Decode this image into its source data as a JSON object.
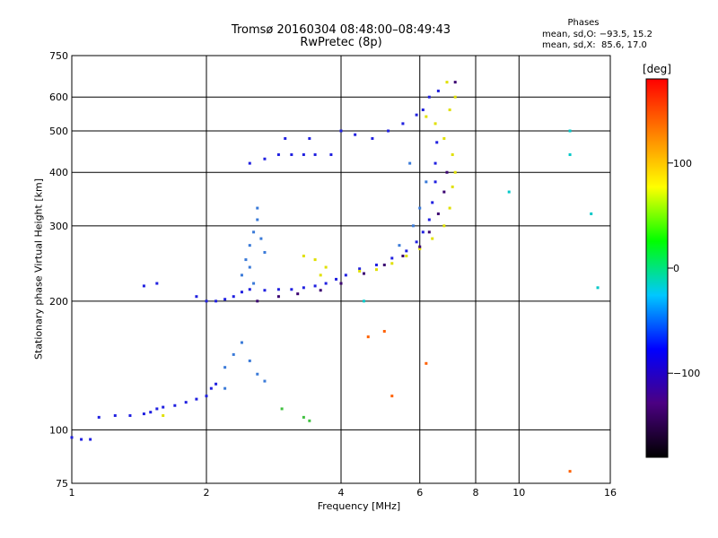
{
  "title": {
    "line1": "Tromsø 20160304 08:48:00–08:49:43",
    "line2": "RwPretec (8p)"
  },
  "phase_stats": {
    "heading": "Phases",
    "line1": "mean, sd,O: −93.5, 15.2",
    "line2": "mean, sd,X:  85.6, 17.0"
  },
  "colorbar": {
    "unit": "[deg]",
    "ticks": [
      "100",
      "0",
      "−100"
    ],
    "tick_values": [
      100,
      0,
      -100
    ],
    "range": [
      -180,
      180
    ],
    "colors": [
      "#000000",
      "#4b0082",
      "#0000ff",
      "#00c8ff",
      "#00ff00",
      "#ffff00",
      "#ff8000",
      "#ff0000"
    ]
  },
  "chart_data": {
    "type": "scatter",
    "xlabel": "Frequency [MHz]",
    "ylabel": "Stationary phase Virtual Height [km]",
    "x_scale": "log",
    "y_scale": "log",
    "xlim": [
      1,
      16
    ],
    "ylim": [
      75,
      750
    ],
    "x_ticks": [
      1,
      2,
      4,
      6,
      8,
      10,
      16
    ],
    "x_tick_labels": [
      "1",
      "2",
      "4",
      "6",
      "8",
      "10",
      "16"
    ],
    "y_ticks": [
      75,
      100,
      200,
      300,
      400,
      500,
      600,
      750
    ],
    "y_tick_labels": [
      "75",
      "100",
      "200",
      "300",
      "400",
      "500",
      "600",
      "750"
    ],
    "grid": true,
    "series": [
      {
        "color": "#2020e0",
        "points": [
          [
            1.0,
            96
          ],
          [
            1.05,
            95
          ],
          [
            1.1,
            95
          ],
          [
            1.15,
            107
          ],
          [
            1.25,
            108
          ],
          [
            1.35,
            108
          ],
          [
            1.45,
            109
          ],
          [
            1.5,
            110
          ],
          [
            1.55,
            112
          ],
          [
            1.6,
            113
          ],
          [
            1.7,
            114
          ],
          [
            1.8,
            116
          ],
          [
            1.9,
            118
          ],
          [
            2.0,
            120
          ],
          [
            2.05,
            125
          ],
          [
            2.1,
            128
          ],
          [
            1.45,
            217
          ],
          [
            1.55,
            220
          ],
          [
            1.9,
            205
          ],
          [
            2.0,
            200
          ],
          [
            2.1,
            200
          ],
          [
            2.2,
            202
          ],
          [
            2.3,
            205
          ],
          [
            2.4,
            210
          ],
          [
            2.5,
            213
          ],
          [
            2.7,
            212
          ],
          [
            2.9,
            213
          ],
          [
            3.1,
            213
          ],
          [
            3.3,
            215
          ],
          [
            3.5,
            217
          ],
          [
            3.7,
            220
          ],
          [
            3.9,
            225
          ],
          [
            4.1,
            230
          ],
          [
            4.4,
            238
          ],
          [
            4.8,
            243
          ],
          [
            5.2,
            252
          ],
          [
            5.6,
            262
          ],
          [
            5.9,
            275
          ],
          [
            6.1,
            290
          ],
          [
            6.3,
            310
          ],
          [
            6.4,
            340
          ],
          [
            6.5,
            380
          ],
          [
            6.5,
            420
          ],
          [
            6.55,
            470
          ],
          [
            2.5,
            420
          ],
          [
            2.7,
            430
          ],
          [
            2.9,
            440
          ],
          [
            3.1,
            440
          ],
          [
            3.3,
            440
          ],
          [
            3.5,
            440
          ],
          [
            3.8,
            440
          ],
          [
            4.0,
            500
          ],
          [
            4.3,
            490
          ],
          [
            4.7,
            480
          ],
          [
            5.1,
            500
          ],
          [
            5.5,
            520
          ],
          [
            5.9,
            545
          ],
          [
            6.1,
            560
          ],
          [
            6.3,
            600
          ],
          [
            6.6,
            620
          ],
          [
            3.0,
            480
          ],
          [
            3.4,
            480
          ]
        ]
      },
      {
        "color": "#3a7ad8",
        "points": [
          [
            2.4,
            230
          ],
          [
            2.45,
            250
          ],
          [
            2.5,
            270
          ],
          [
            2.55,
            290
          ],
          [
            2.6,
            310
          ],
          [
            2.65,
            280
          ],
          [
            2.7,
            260
          ],
          [
            2.5,
            240
          ],
          [
            2.55,
            220
          ],
          [
            2.6,
            330
          ],
          [
            2.2,
            140
          ],
          [
            2.3,
            150
          ],
          [
            2.4,
            160
          ],
          [
            2.5,
            145
          ],
          [
            2.6,
            135
          ],
          [
            2.2,
            125
          ],
          [
            2.7,
            130
          ],
          [
            5.4,
            270
          ],
          [
            5.8,
            300
          ],
          [
            6.0,
            330
          ],
          [
            6.2,
            380
          ],
          [
            5.7,
            420
          ]
        ]
      },
      {
        "color": "#e0e000",
        "points": [
          [
            3.3,
            255
          ],
          [
            3.5,
            250
          ],
          [
            3.7,
            240
          ],
          [
            4.4,
            235
          ],
          [
            4.8,
            237
          ],
          [
            5.2,
            245
          ],
          [
            5.6,
            255
          ],
          [
            6.0,
            265
          ],
          [
            6.4,
            280
          ],
          [
            6.8,
            300
          ],
          [
            7.0,
            330
          ],
          [
            7.1,
            370
          ],
          [
            7.2,
            400
          ],
          [
            7.1,
            440
          ],
          [
            6.8,
            480
          ],
          [
            6.5,
            520
          ],
          [
            6.2,
            540
          ],
          [
            7.0,
            560
          ],
          [
            7.2,
            600
          ],
          [
            6.9,
            650
          ],
          [
            1.6,
            108
          ],
          [
            3.6,
            230
          ]
        ]
      },
      {
        "color": "#3a0070",
        "points": [
          [
            2.6,
            200
          ],
          [
            2.9,
            205
          ],
          [
            3.2,
            208
          ],
          [
            3.6,
            212
          ],
          [
            4.0,
            220
          ],
          [
            4.5,
            232
          ],
          [
            5.0,
            243
          ],
          [
            5.5,
            255
          ],
          [
            6.0,
            268
          ],
          [
            6.3,
            290
          ],
          [
            6.6,
            320
          ],
          [
            6.8,
            360
          ],
          [
            6.9,
            400
          ],
          [
            7.2,
            650
          ]
        ]
      },
      {
        "color": "#40c040",
        "points": [
          [
            3.3,
            107
          ],
          [
            3.4,
            105
          ],
          [
            2.95,
            112
          ]
        ]
      },
      {
        "color": "#ff6000",
        "points": [
          [
            5.0,
            170
          ],
          [
            5.2,
            120
          ],
          [
            6.2,
            143
          ],
          [
            13.0,
            80
          ],
          [
            4.6,
            165
          ]
        ]
      },
      {
        "color": "#00c8c8",
        "points": [
          [
            13.0,
            500
          ],
          [
            13.0,
            440
          ],
          [
            14.5,
            320
          ],
          [
            9.5,
            360
          ],
          [
            15.0,
            215
          ],
          [
            4.5,
            200
          ]
        ]
      }
    ]
  }
}
